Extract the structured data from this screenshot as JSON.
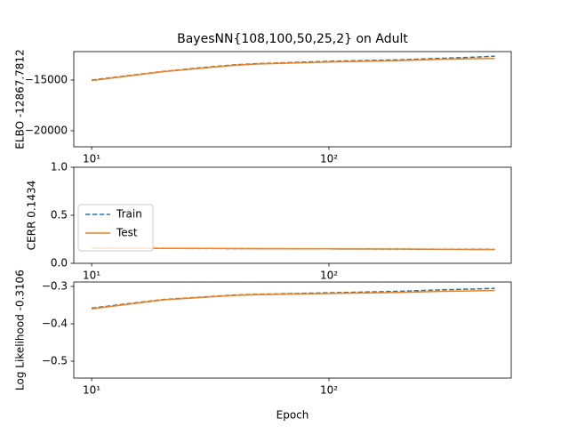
{
  "chart_data": [
    {
      "type": "line",
      "title": "BayesNN{108,100,50,25,2} on Adult",
      "ylabel": "ELBO -12867.7812",
      "log_x": true,
      "x": [
        10,
        20,
        30,
        40,
        50,
        100,
        200,
        300,
        400,
        500
      ],
      "series": [
        {
          "name": "Train",
          "color": "#1f77b4",
          "linestyle": "dashed",
          "values": [
            -15000,
            -14150,
            -13750,
            -13500,
            -13380,
            -13150,
            -13000,
            -12850,
            -12750,
            -12650
          ]
        },
        {
          "name": "Test",
          "color": "#ff7f0e",
          "linestyle": "solid",
          "values": [
            -15050,
            -14180,
            -13800,
            -13550,
            -13420,
            -13220,
            -13080,
            -12950,
            -12900,
            -12868
          ]
        }
      ],
      "xlim": [
        8.41,
        586
      ],
      "ylim": [
        -21579,
        -12193
      ],
      "xticks": [
        {
          "value": 10,
          "label": "10¹"
        },
        {
          "value": 100,
          "label": "10²"
        }
      ],
      "yticks": [
        {
          "value": -20000,
          "label": "−20000"
        },
        {
          "value": -15000,
          "label": "−15000"
        }
      ]
    },
    {
      "type": "line",
      "ylabel": "CERR 0.1434",
      "log_x": true,
      "legend": "center left",
      "x": [
        10,
        20,
        30,
        40,
        50,
        100,
        200,
        300,
        400,
        500
      ],
      "series": [
        {
          "name": "Train",
          "color": "#1f77b4",
          "linestyle": "dashed",
          "values": [
            0.158,
            0.155,
            0.154,
            0.153,
            0.152,
            0.15,
            0.148,
            0.146,
            0.146,
            0.145
          ]
        },
        {
          "name": "Test",
          "color": "#ff7f0e",
          "linestyle": "solid",
          "values": [
            0.16,
            0.156,
            0.155,
            0.153,
            0.152,
            0.15,
            0.148,
            0.145,
            0.144,
            0.1434
          ]
        }
      ],
      "xlim": [
        8.41,
        586
      ],
      "ylim": [
        0,
        1
      ],
      "xticks": [
        {
          "value": 10,
          "label": "10¹"
        },
        {
          "value": 100,
          "label": "10²"
        }
      ],
      "yticks": [
        {
          "value": 0,
          "label": "0.0"
        },
        {
          "value": 0.5,
          "label": "0.5"
        },
        {
          "value": 1,
          "label": "1.0"
        }
      ]
    },
    {
      "type": "line",
      "ylabel": "Log Likelihood -0.3106",
      "xlabel": "Epoch",
      "log_x": true,
      "x": [
        10,
        20,
        30,
        40,
        50,
        100,
        200,
        300,
        400,
        500
      ],
      "series": [
        {
          "name": "Train",
          "color": "#1f77b4",
          "linestyle": "dashed",
          "values": [
            -0.358,
            -0.335,
            -0.328,
            -0.323,
            -0.321,
            -0.317,
            -0.313,
            -0.309,
            -0.307,
            -0.305
          ]
        },
        {
          "name": "Test",
          "color": "#ff7f0e",
          "linestyle": "solid",
          "values": [
            -0.36,
            -0.336,
            -0.329,
            -0.324,
            -0.322,
            -0.319,
            -0.316,
            -0.313,
            -0.312,
            -0.3106
          ]
        }
      ],
      "xlim": [
        8.41,
        586
      ],
      "ylim": [
        -0.5452,
        -0.2881
      ],
      "xticks": [
        {
          "value": 10,
          "label": "10¹"
        },
        {
          "value": 100,
          "label": "10²"
        }
      ],
      "yticks": [
        {
          "value": -0.5,
          "label": "−0.5"
        },
        {
          "value": -0.4,
          "label": "−0.4"
        },
        {
          "value": -0.3,
          "label": "−0.3"
        }
      ]
    }
  ]
}
